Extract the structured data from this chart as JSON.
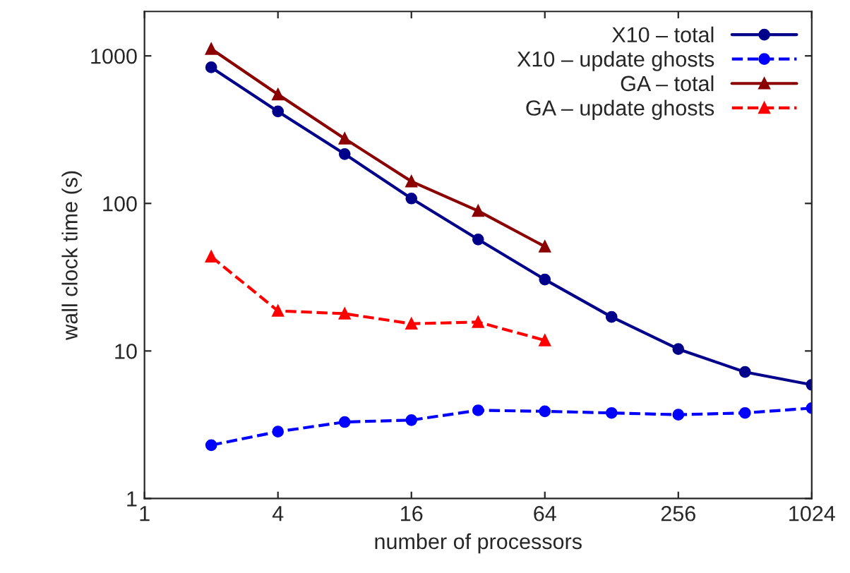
{
  "chart_data": {
    "type": "line",
    "xlabel": "number of processors",
    "ylabel": "wall clock time (s)",
    "log": "xy",
    "xlim": [
      1,
      1024
    ],
    "xticks": [
      1,
      4,
      16,
      64,
      256,
      1024
    ],
    "ylim": [
      1,
      2000
    ],
    "yticks": [
      1,
      10,
      100,
      1000
    ],
    "grid": false,
    "legend": "top right",
    "series": [
      {
        "name": "X10 – total",
        "color": "#00008b",
        "marker": "circle",
        "line_style": "solid",
        "x": [
          2,
          4,
          8,
          16,
          32,
          64,
          128,
          256,
          512,
          1024
        ],
        "values": [
          836,
          420,
          216,
          108,
          57,
          30.5,
          17,
          10.3,
          7.2,
          5.9
        ]
      },
      {
        "name": "X10 – update ghosts",
        "color": "#0000ff",
        "marker": "circle",
        "line_style": "dashed",
        "x": [
          2,
          4,
          8,
          16,
          32,
          64,
          128,
          256,
          512,
          1024
        ],
        "values": [
          2.3,
          2.84,
          3.3,
          3.4,
          3.96,
          3.9,
          3.8,
          3.7,
          3.8,
          4.1
        ]
      },
      {
        "name": "GA – total",
        "color": "#8b0000",
        "marker": "triangle",
        "line_style": "solid",
        "x": [
          2,
          4,
          8,
          16,
          32,
          64
        ],
        "values": [
          1115,
          548,
          275,
          141,
          89,
          51
        ]
      },
      {
        "name": "GA – update ghosts",
        "color": "#ff0000",
        "marker": "triangle",
        "line_style": "dashed",
        "x": [
          2,
          4,
          8,
          16,
          32,
          64
        ],
        "values": [
          43.6,
          18.7,
          17.9,
          15.3,
          15.7,
          11.8
        ]
      }
    ]
  }
}
